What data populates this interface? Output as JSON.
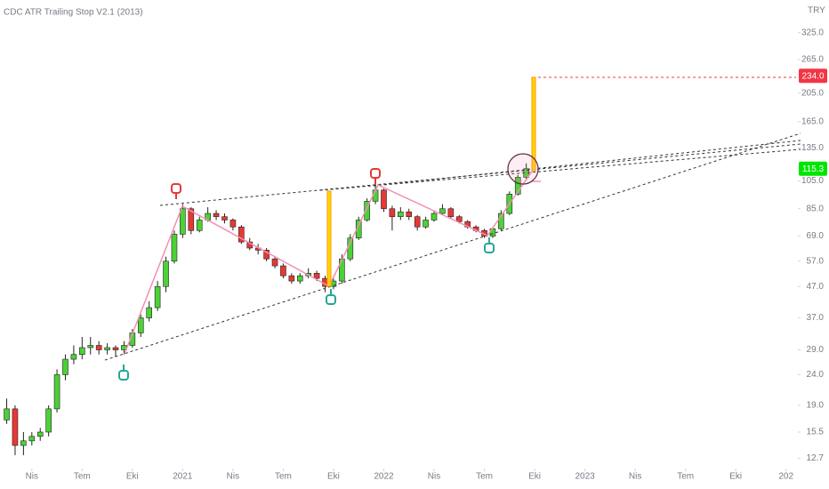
{
  "chart_data": {
    "type": "candlestick",
    "title": "CDC ATR Trailing Stop V2.1 (2013)",
    "currency": "TRY",
    "log_scale": true,
    "up_color": "#4cd137",
    "down_color": "#e53935",
    "xlim": [
      1.1,
      48.6
    ],
    "xticks": [
      {
        "value": 3,
        "label": "Nis"
      },
      {
        "value": 6,
        "label": "Tem"
      },
      {
        "value": 9,
        "label": "Eki"
      },
      {
        "value": 12,
        "label": "2021"
      },
      {
        "value": 15,
        "label": "Nis"
      },
      {
        "value": 18,
        "label": "Tem"
      },
      {
        "value": 21,
        "label": "Eki"
      },
      {
        "value": 24,
        "label": "2022"
      },
      {
        "value": 27,
        "label": "Nis"
      },
      {
        "value": 30,
        "label": "Tem"
      },
      {
        "value": 33,
        "label": "Eki"
      },
      {
        "value": 36,
        "label": "2023"
      },
      {
        "value": 39,
        "label": "Nis"
      },
      {
        "value": 42,
        "label": "Tem"
      },
      {
        "value": 45,
        "label": "Eki"
      },
      {
        "value": 48,
        "label": "202"
      }
    ],
    "ylim": [
      11.9,
      417
    ],
    "yticks": [
      12.7,
      15.5,
      {
        "value": 19,
        "label": "19.0"
      },
      {
        "value": 24,
        "label": "24.0"
      },
      {
        "value": 29,
        "label": "29.0"
      },
      {
        "value": 37,
        "label": "37.0"
      },
      {
        "value": 47,
        "label": "47.0"
      },
      {
        "value": 57,
        "label": "57.0"
      },
      {
        "value": 69,
        "label": "69.0"
      },
      {
        "value": 85,
        "label": "85.0"
      },
      {
        "value": 105,
        "label": "105.0"
      },
      {
        "value": 135,
        "label": "135.0"
      },
      {
        "value": 165,
        "label": "165.0"
      },
      {
        "value": 205,
        "label": "205.0"
      },
      {
        "value": 265,
        "label": "265.0"
      },
      {
        "value": 325,
        "label": "325.0"
      }
    ],
    "price_labels": [
      {
        "value": 234,
        "label": "234.0",
        "color": "#f23645"
      },
      {
        "value": 115.3,
        "label": "115.3",
        "color": "#00e600"
      }
    ],
    "x": [
      1.5,
      2,
      2.5,
      3,
      3.5,
      4,
      4.5,
      5,
      5.5,
      6,
      6.5,
      7,
      7.5,
      8,
      8.5,
      9,
      9.5,
      10,
      10.5,
      11,
      11.5,
      12,
      12.5,
      13,
      13.5,
      14,
      14.5,
      15,
      15.5,
      16,
      16.5,
      17,
      17.5,
      18,
      18.5,
      19,
      19.5,
      20,
      20.5,
      21,
      21.5,
      22,
      22.5,
      23,
      23.5,
      24,
      24.5,
      25,
      25.5,
      26,
      26.5,
      27,
      27.5,
      28,
      28.5,
      29,
      29.5,
      30,
      30.5,
      31,
      31.5,
      32,
      32.5
    ],
    "open": [
      17,
      18.5,
      14,
      14.5,
      15,
      15.5,
      18.5,
      24,
      27,
      28,
      29.5,
      30,
      29,
      29.5,
      29,
      30,
      33,
      37,
      40,
      47,
      57,
      70,
      85,
      72,
      78,
      82,
      80,
      78,
      74,
      66,
      63,
      62,
      58,
      55,
      51,
      49,
      51,
      52,
      50,
      47,
      49,
      58,
      68,
      78,
      90,
      98,
      85,
      80,
      83,
      80,
      74,
      78,
      82,
      85,
      80,
      77,
      74,
      72,
      69,
      73,
      82,
      95,
      108
    ],
    "high": [
      20,
      19,
      15.5,
      15.5,
      16,
      19,
      25,
      28,
      30,
      32,
      32,
      31,
      30.5,
      30,
      31,
      34,
      38,
      42,
      49,
      59,
      72,
      88,
      86,
      80,
      86,
      84,
      82,
      79,
      75,
      68,
      65,
      63,
      59,
      56,
      52,
      52,
      54,
      53,
      51,
      50,
      60,
      70,
      80,
      92,
      103,
      99,
      87,
      86,
      85,
      81,
      80,
      84,
      88,
      86,
      81,
      78,
      75,
      73,
      74,
      84,
      97,
      110,
      120
    ],
    "low": [
      16.5,
      13,
      13,
      14,
      14.5,
      15,
      18,
      23,
      26,
      27,
      28,
      28,
      28,
      27.5,
      28,
      29.5,
      32,
      36,
      39,
      45,
      56,
      68,
      70,
      71,
      77,
      78,
      76,
      72,
      65,
      62,
      60,
      57,
      54,
      50,
      48,
      48,
      50,
      49,
      45,
      46,
      48,
      57,
      67,
      77,
      88,
      83,
      72,
      78,
      78,
      72,
      73,
      77,
      81,
      79,
      76,
      73,
      71,
      68,
      68,
      72,
      81,
      94,
      106
    ],
    "close": [
      18.5,
      14,
      14.5,
      15,
      15.5,
      18.5,
      24,
      27,
      28,
      29.5,
      30,
      29,
      29.5,
      29,
      30,
      33,
      37,
      40,
      47,
      57,
      70,
      85,
      72,
      78,
      82,
      80,
      78,
      74,
      66,
      63,
      62,
      58,
      55,
      51,
      49,
      51,
      52,
      50,
      47,
      49,
      58,
      68,
      78,
      90,
      98,
      85,
      80,
      83,
      80,
      74,
      78,
      82,
      85,
      80,
      77,
      74,
      72,
      69,
      73,
      82,
      95,
      108,
      115.3
    ]
  }
}
